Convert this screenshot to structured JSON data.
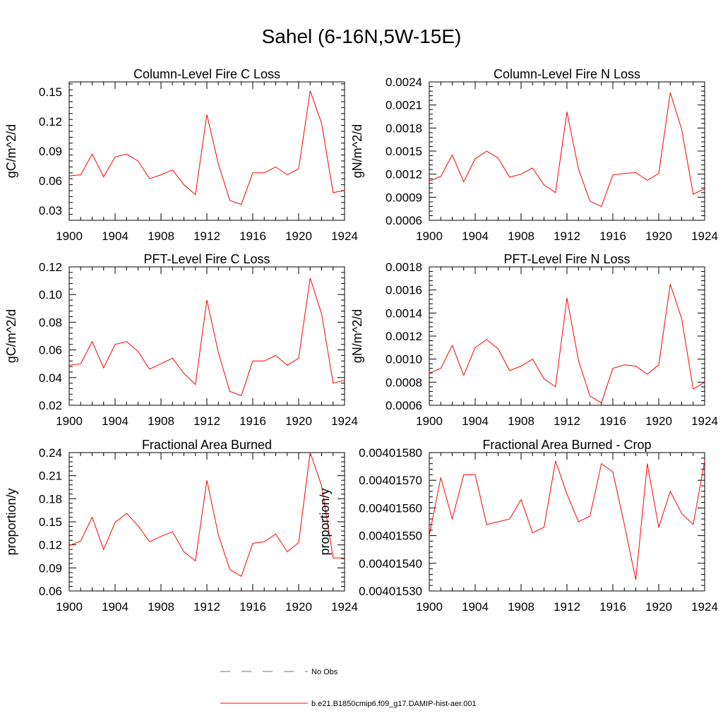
{
  "figure": {
    "title": "Sahel (6-16N,5W-15E)"
  },
  "legend": {
    "entries": [
      {
        "label": "No Obs",
        "color": "#6b6bb3",
        "style": "dashed"
      },
      {
        "label": "b.e21.B1850cmip6.f09_g17.DAMIP-hist-aer.001",
        "color": "#ff0000",
        "style": "solid"
      }
    ]
  },
  "chart_data": [
    {
      "type": "line",
      "title": "Column-Level Fire C Loss",
      "ylabel": "gC/m^2/d",
      "xlim": [
        1900,
        1924
      ],
      "ylim": [
        0.02,
        0.16
      ],
      "xticks": [
        "1900",
        "1904",
        "1908",
        "1912",
        "1916",
        "1920",
        "1924"
      ],
      "yticks": [
        "0.03",
        "0.06",
        "0.09",
        "0.12",
        "0.15"
      ],
      "x": [
        1900,
        1901,
        1902,
        1903,
        1904,
        1905,
        1906,
        1907,
        1908,
        1909,
        1910,
        1911,
        1912,
        1913,
        1914,
        1915,
        1916,
        1917,
        1918,
        1919,
        1920,
        1921,
        1922,
        1923,
        1924
      ],
      "series": [
        {
          "color": "#ff0000",
          "values": [
            0.065,
            0.066,
            0.087,
            0.064,
            0.084,
            0.087,
            0.08,
            0.062,
            0.066,
            0.071,
            0.056,
            0.046,
            0.127,
            0.077,
            0.04,
            0.036,
            0.068,
            0.068,
            0.074,
            0.066,
            0.072,
            0.151,
            0.118,
            0.048,
            0.05
          ]
        }
      ]
    },
    {
      "type": "line",
      "title": "Column-Level Fire N Loss",
      "ylabel": "gN/m^2/d",
      "xlim": [
        1900,
        1924
      ],
      "ylim": [
        0.0006,
        0.0024
      ],
      "xticks": [
        "1900",
        "1904",
        "1908",
        "1912",
        "1916",
        "1920",
        "1924"
      ],
      "yticks": [
        "0.0006",
        "0.0009",
        "0.0012",
        "0.0015",
        "0.0018",
        "0.0021",
        "0.0024"
      ],
      "x": [
        1900,
        1901,
        1902,
        1903,
        1904,
        1905,
        1906,
        1907,
        1908,
        1909,
        1910,
        1911,
        1912,
        1913,
        1914,
        1915,
        1916,
        1917,
        1918,
        1919,
        1920,
        1921,
        1922,
        1923,
        1924
      ],
      "series": [
        {
          "color": "#ff0000",
          "values": [
            0.00111,
            0.00117,
            0.00145,
            0.0011,
            0.0014,
            0.0015,
            0.00141,
            0.00116,
            0.0012,
            0.00128,
            0.00106,
            0.00096,
            0.00201,
            0.00127,
            0.00085,
            0.00078,
            0.00119,
            0.00121,
            0.00122,
            0.00112,
            0.00121,
            0.00226,
            0.00178,
            0.00094,
            0.00101
          ]
        }
      ]
    },
    {
      "type": "line",
      "title": "PFT-Level Fire C Loss",
      "ylabel": "gC/m^2/d",
      "xlim": [
        1900,
        1924
      ],
      "ylim": [
        0.02,
        0.12
      ],
      "xticks": [
        "1900",
        "1904",
        "1908",
        "1912",
        "1916",
        "1920",
        "1924"
      ],
      "yticks": [
        "0.02",
        "0.04",
        "0.06",
        "0.08",
        "0.10",
        "0.12"
      ],
      "x": [
        1900,
        1901,
        1902,
        1903,
        1904,
        1905,
        1906,
        1907,
        1908,
        1909,
        1910,
        1911,
        1912,
        1913,
        1914,
        1915,
        1916,
        1917,
        1918,
        1919,
        1920,
        1921,
        1922,
        1923,
        1924
      ],
      "series": [
        {
          "color": "#ff0000",
          "values": [
            0.049,
            0.05,
            0.066,
            0.047,
            0.064,
            0.066,
            0.059,
            0.046,
            0.05,
            0.054,
            0.043,
            0.035,
            0.096,
            0.058,
            0.03,
            0.027,
            0.052,
            0.052,
            0.056,
            0.049,
            0.054,
            0.112,
            0.086,
            0.036,
            0.038
          ]
        }
      ]
    },
    {
      "type": "line",
      "title": "PFT-Level Fire N Loss",
      "ylabel": "gN/m^2/d",
      "xlim": [
        1900,
        1924
      ],
      "ylim": [
        0.0006,
        0.0018
      ],
      "xticks": [
        "1900",
        "1904",
        "1908",
        "1912",
        "1916",
        "1920",
        "1924"
      ],
      "yticks": [
        "0.0006",
        "0.0008",
        "0.0010",
        "0.0012",
        "0.0014",
        "0.0016",
        "0.0018"
      ],
      "x": [
        1900,
        1901,
        1902,
        1903,
        1904,
        1905,
        1906,
        1907,
        1908,
        1909,
        1910,
        1911,
        1912,
        1913,
        1914,
        1915,
        1916,
        1917,
        1918,
        1919,
        1920,
        1921,
        1922,
        1923,
        1924
      ],
      "series": [
        {
          "color": "#ff0000",
          "values": [
            0.00088,
            0.00092,
            0.00112,
            0.00086,
            0.0011,
            0.00117,
            0.00109,
            0.0009,
            0.00094,
            0.001,
            0.00083,
            0.00076,
            0.00153,
            0.00099,
            0.00068,
            0.00062,
            0.00092,
            0.00095,
            0.00094,
            0.00087,
            0.00095,
            0.00165,
            0.00135,
            0.00074,
            0.0008
          ]
        }
      ]
    },
    {
      "type": "line",
      "title": "Fractional Area Burned",
      "ylabel": "proportion/y",
      "xlim": [
        1900,
        1924
      ],
      "ylim": [
        0.06,
        0.24
      ],
      "xticks": [
        "1900",
        "1904",
        "1908",
        "1912",
        "1916",
        "1920",
        "1924"
      ],
      "yticks": [
        "0.06",
        "0.09",
        "0.12",
        "0.15",
        "0.18",
        "0.21",
        "0.24"
      ],
      "x": [
        1900,
        1901,
        1902,
        1903,
        1904,
        1905,
        1906,
        1907,
        1908,
        1909,
        1910,
        1911,
        1912,
        1913,
        1914,
        1915,
        1916,
        1917,
        1918,
        1919,
        1920,
        1921,
        1922,
        1923,
        1924
      ],
      "series": [
        {
          "color": "#ff0000",
          "values": [
            0.119,
            0.125,
            0.156,
            0.114,
            0.149,
            0.161,
            0.145,
            0.124,
            0.131,
            0.137,
            0.111,
            0.099,
            0.204,
            0.133,
            0.088,
            0.079,
            0.122,
            0.124,
            0.134,
            0.111,
            0.123,
            0.24,
            0.197,
            0.103,
            0.103
          ]
        }
      ]
    },
    {
      "type": "line",
      "title": "Fractional Area Burned - Crop",
      "ylabel": "proportion/y",
      "xlim": [
        1900,
        1924
      ],
      "ylim": [
        0.0040153,
        0.0040158
      ],
      "xticks": [
        "1900",
        "1904",
        "1908",
        "1912",
        "1916",
        "1920",
        "1924"
      ],
      "yticks": [
        "0.00401530",
        "0.00401540",
        "0.00401550",
        "0.00401560",
        "0.00401570",
        "0.00401580"
      ],
      "x": [
        1900,
        1901,
        1902,
        1903,
        1904,
        1905,
        1906,
        1907,
        1908,
        1909,
        1910,
        1911,
        1912,
        1913,
        1914,
        1915,
        1916,
        1917,
        1918,
        1919,
        1920,
        1921,
        1922,
        1923,
        1924
      ],
      "series": [
        {
          "color": "#ff0000",
          "values": [
            0.0040155,
            0.00401571,
            0.00401556,
            0.00401572,
            0.00401572,
            0.00401554,
            0.00401555,
            0.00401556,
            0.00401563,
            0.00401551,
            0.00401553,
            0.00401577,
            0.00401565,
            0.00401555,
            0.00401557,
            0.00401576,
            0.00401573,
            0.00401554,
            0.00401534,
            0.00401576,
            0.00401553,
            0.00401566,
            0.00401558,
            0.00401554,
            0.00401577
          ]
        }
      ]
    }
  ]
}
